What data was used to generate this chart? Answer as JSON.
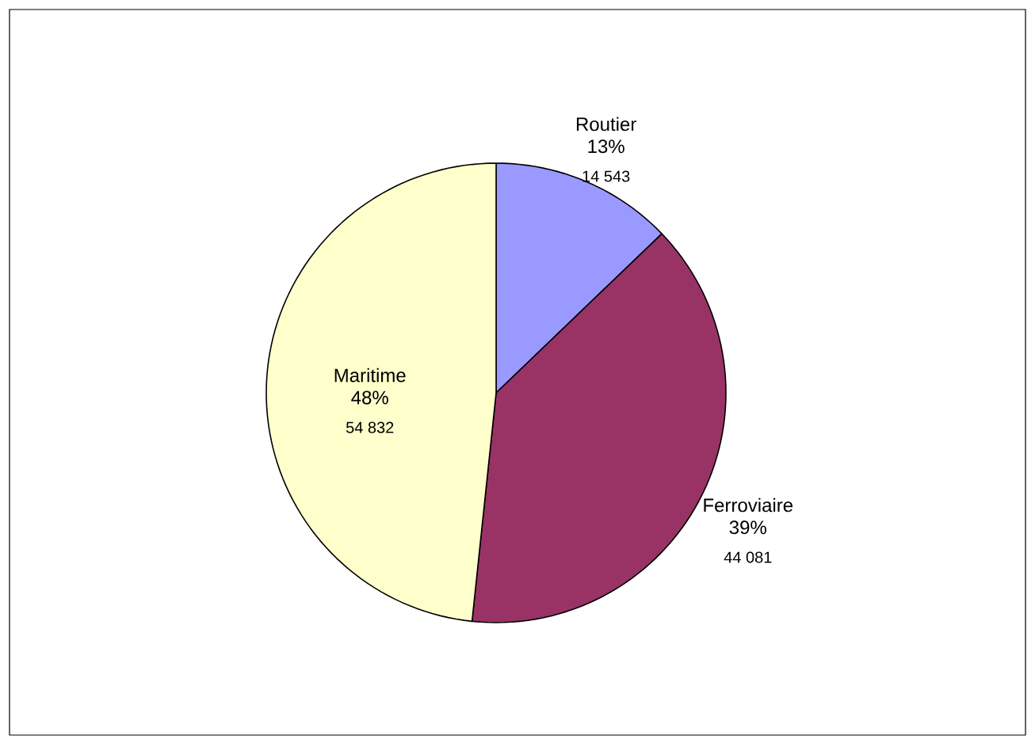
{
  "chart_data": {
    "type": "pie",
    "categories": [
      "Routier",
      "Ferroviaire",
      "Maritime"
    ],
    "values": [
      14543,
      44081,
      54832
    ],
    "colors": [
      "#9999ff",
      "#993366",
      "#ffffcc"
    ],
    "value_labels": [
      "14 543",
      "44 081",
      "54 832"
    ],
    "annotations": [
      "13%",
      "39%",
      "48%"
    ]
  }
}
